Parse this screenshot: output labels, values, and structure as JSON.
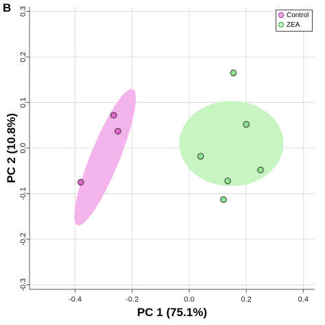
{
  "panel_letter": "B",
  "chart_data": {
    "type": "scatter",
    "xlabel": "PC 1 (75.1%)",
    "ylabel": "PC 2 (10.8%)",
    "xlim": [
      -0.56,
      0.44
    ],
    "ylim": [
      -0.31,
      0.31
    ],
    "xticks": [
      -0.4,
      -0.2,
      0.0,
      0.2,
      0.4
    ],
    "yticks": [
      -0.3,
      -0.2,
      -0.1,
      0.0,
      0.1,
      0.2,
      0.3
    ],
    "xtick_labels": [
      "-0.4",
      "-0.2",
      "0.0",
      "0.2",
      "0.4"
    ],
    "ytick_labels": [
      "-0.3",
      "-0.2",
      "-0.1",
      "0.0",
      "0.1",
      "0.2",
      "0.3"
    ],
    "grid": true,
    "legend_position": "top-right",
    "series": [
      {
        "name": "Control",
        "color": "#e066c8",
        "ellipse_fill": "#f5b3ec",
        "points": [
          {
            "x": -0.38,
            "y": -0.075
          },
          {
            "x": -0.265,
            "y": 0.072
          },
          {
            "x": -0.25,
            "y": 0.037
          }
        ],
        "ellipse": {
          "cx": -0.295,
          "cy": -0.02,
          "major": 0.178,
          "minor": 0.046,
          "angle_deg": 57
        }
      },
      {
        "name": "ZEA",
        "color": "#8fe08f",
        "ellipse_fill": "#c6f5c1",
        "points": [
          {
            "x": 0.155,
            "y": 0.165
          },
          {
            "x": 0.2,
            "y": 0.052
          },
          {
            "x": 0.04,
            "y": -0.018
          },
          {
            "x": 0.25,
            "y": -0.048
          },
          {
            "x": 0.135,
            "y": -0.072
          },
          {
            "x": 0.12,
            "y": -0.113
          }
        ],
        "ellipse": {
          "cx": 0.148,
          "cy": 0.01,
          "major": 0.183,
          "minor": 0.0935,
          "angle_deg": 0
        }
      }
    ]
  }
}
